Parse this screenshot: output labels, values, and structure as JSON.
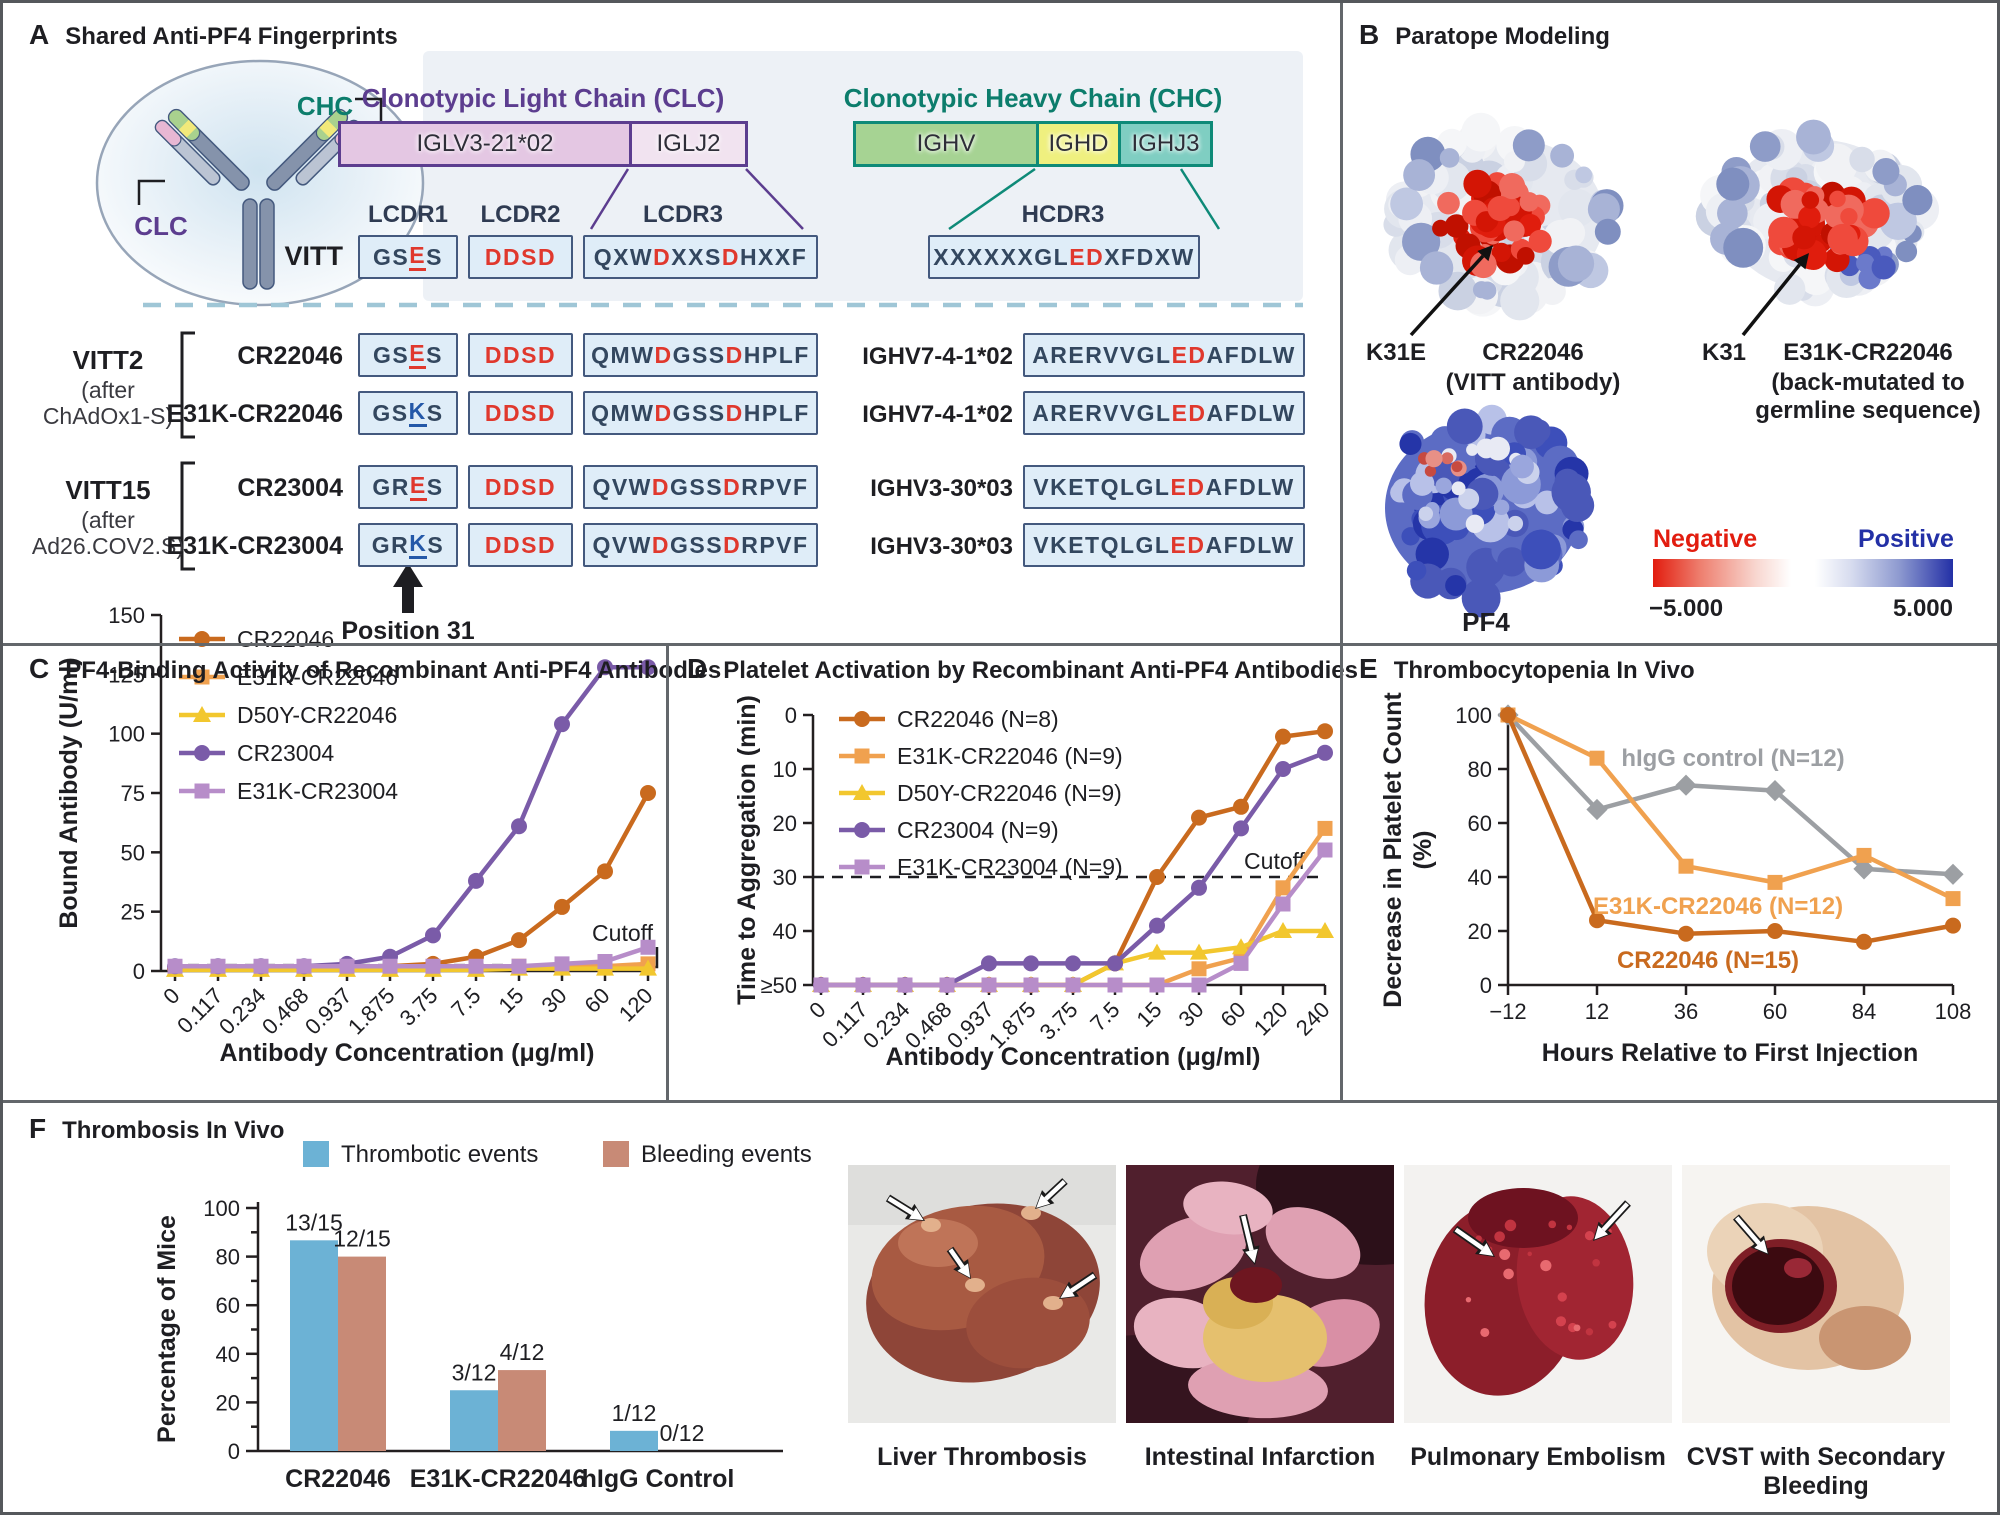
{
  "panelA": {
    "label": "A",
    "title": "Shared Anti-PF4 Fingerprints",
    "cartoon": {
      "chc_label": "CHC",
      "clc_label": "CLC"
    },
    "clc": {
      "header": "Clonotypic Light Chain (CLC)",
      "seg1": "IGLV3-21*02",
      "seg2": "IGLJ2"
    },
    "chc": {
      "header": "Clonotypic Heavy Chain (CHC)",
      "seg1": "IGHV",
      "seg2": "IGHD",
      "seg3": "IGHJ3"
    },
    "cols": {
      "lcdr1": "LCDR1",
      "lcdr2": "LCDR2",
      "lcdr3": "LCDR3",
      "hcdr3": "HCDR3"
    },
    "vitt_row": {
      "name": "VITT",
      "lcdr1": [
        [
          "GS",
          "d"
        ],
        [
          "E",
          "ru"
        ],
        [
          "S",
          "d"
        ]
      ],
      "lcdr2": [
        [
          "DDSD",
          "r"
        ]
      ],
      "lcdr3": [
        [
          "QXW",
          "d"
        ],
        [
          "D",
          "r"
        ],
        [
          "XXS",
          "d"
        ],
        [
          "D",
          "r"
        ],
        [
          "HXXF",
          "d"
        ]
      ],
      "hcdr3": [
        [
          "XXXXXXGL",
          "d"
        ],
        [
          "ED",
          "r"
        ],
        [
          "XFDXW",
          "d"
        ]
      ]
    },
    "groups": [
      {
        "name": "VITT2",
        "note1": "(after",
        "note2": "ChAdOx1-S)"
      },
      {
        "name": "VITT15",
        "note1": "(after",
        "note2": "Ad26.COV2.S)"
      }
    ],
    "rows": [
      {
        "name": "CR22046",
        "lcdr1": [
          [
            "GS",
            "d"
          ],
          [
            "E",
            "ru"
          ],
          [
            "S",
            "d"
          ]
        ],
        "lcdr2": [
          [
            "DDSD",
            "r"
          ]
        ],
        "lcdr3": [
          [
            "QMW",
            "d"
          ],
          [
            "D",
            "r"
          ],
          [
            "GSS",
            "d"
          ],
          [
            "D",
            "r"
          ],
          [
            "HPLF",
            "d"
          ]
        ],
        "gene": "IGHV7-4-1*02",
        "hcdr3": [
          [
            "ARERVVGL",
            "d"
          ],
          [
            "ED",
            "r"
          ],
          [
            "AFDLW",
            "d"
          ]
        ]
      },
      {
        "name": "E31K-CR22046",
        "lcdr1": [
          [
            "GS",
            "d"
          ],
          [
            "K",
            "bu"
          ],
          [
            "S",
            "d"
          ]
        ],
        "lcdr2": [
          [
            "DDSD",
            "r"
          ]
        ],
        "lcdr3": [
          [
            "QMW",
            "d"
          ],
          [
            "D",
            "r"
          ],
          [
            "GSS",
            "d"
          ],
          [
            "D",
            "r"
          ],
          [
            "HPLF",
            "d"
          ]
        ],
        "gene": "IGHV7-4-1*02",
        "hcdr3": [
          [
            "ARERVVGL",
            "d"
          ],
          [
            "ED",
            "r"
          ],
          [
            "AFDLW",
            "d"
          ]
        ]
      },
      {
        "name": "CR23004",
        "lcdr1": [
          [
            "GR",
            "d"
          ],
          [
            "E",
            "ru"
          ],
          [
            "S",
            "d"
          ]
        ],
        "lcdr2": [
          [
            "DDSD",
            "r"
          ]
        ],
        "lcdr3": [
          [
            "QVW",
            "d"
          ],
          [
            "D",
            "r"
          ],
          [
            "GSS",
            "d"
          ],
          [
            "D",
            "r"
          ],
          [
            "RPVF",
            "d"
          ]
        ],
        "gene": "IGHV3-30*03",
        "hcdr3": [
          [
            "VKETQLGL",
            "d"
          ],
          [
            "ED",
            "r"
          ],
          [
            "AFDLW",
            "d"
          ]
        ]
      },
      {
        "name": "E31K-CR23004",
        "lcdr1": [
          [
            "GR",
            "d"
          ],
          [
            "K",
            "bu"
          ],
          [
            "S",
            "d"
          ]
        ],
        "lcdr2": [
          [
            "DDSD",
            "r"
          ]
        ],
        "lcdr3": [
          [
            "QVW",
            "d"
          ],
          [
            "D",
            "r"
          ],
          [
            "GSS",
            "d"
          ],
          [
            "D",
            "r"
          ],
          [
            "RPVF",
            "d"
          ]
        ],
        "gene": "IGHV3-30*03",
        "hcdr3": [
          [
            "VKETQLGL",
            "d"
          ],
          [
            "ED",
            "r"
          ],
          [
            "AFDLW",
            "d"
          ]
        ]
      }
    ],
    "position_label": "Position 31"
  },
  "panelB": {
    "label": "B",
    "title": "Paratope Modeling",
    "k31e": "K31E",
    "blob1_name": "CR22046",
    "blob1_sub": "(VITT antibody)",
    "k31": "K31",
    "blob2_name": "E31K-CR22046",
    "blob2_sub1": "(back-mutated to",
    "blob2_sub2": "germline sequence)",
    "pf4": "PF4",
    "scale": {
      "negative": "Negative",
      "positive": "Positive",
      "min": "−5.000",
      "max": "5.000"
    }
  },
  "chart_data": [
    {
      "id": "chartC",
      "type": "line",
      "panel_label": "C",
      "title": "PF4-Binding Activity of Recombinant Anti-PF4 Antibodies",
      "xlabel": "Antibody Concentration (μg/ml)",
      "ylabel": "Bound Antibody (U/ml)",
      "ylim": [
        0,
        150
      ],
      "yticks": [
        0,
        25,
        50,
        75,
        100,
        125,
        150
      ],
      "categories": [
        "0",
        "0.117",
        "0.234",
        "0.468",
        "0.937",
        "1.875",
        "3.75",
        "7.5",
        "15",
        "30",
        "60",
        "120"
      ],
      "cutoff": {
        "value": 2.5,
        "label": "Cutoff"
      },
      "legend_position": "top-left",
      "grid": false,
      "series": [
        {
          "name": "CR22046",
          "color": "#C96A1E",
          "marker": "circle",
          "values": [
            1,
            1,
            1,
            1,
            1,
            2,
            3,
            6,
            13,
            27,
            42,
            75
          ]
        },
        {
          "name": "E31K-CR22046",
          "color": "#F0A14F",
          "marker": "square",
          "values": [
            1,
            1,
            1,
            1,
            1,
            1,
            1,
            1,
            2,
            2,
            2,
            3
          ]
        },
        {
          "name": "D50Y-CR22046",
          "color": "#F2C72E",
          "marker": "triangle",
          "values": [
            0.5,
            0.5,
            0.5,
            0.5,
            0.5,
            0.5,
            0.5,
            0.5,
            1,
            1,
            1,
            1
          ]
        },
        {
          "name": "CR23004",
          "color": "#7A5BA8",
          "marker": "circle",
          "values": [
            2,
            2,
            2,
            2,
            3,
            6,
            15,
            38,
            61,
            104,
            128,
            128
          ]
        },
        {
          "name": "E31K-CR23004",
          "color": "#B78DC9",
          "marker": "square",
          "values": [
            2,
            2,
            2,
            2,
            2,
            2,
            2,
            2,
            2,
            3,
            4,
            10
          ]
        }
      ]
    },
    {
      "id": "chartD",
      "type": "line",
      "panel_label": "D",
      "title": "Platelet Activation by Recombinant Anti-PF4 Antibodies",
      "xlabel": "Antibody Concentration (μg/ml)",
      "ylabel": "Time to Aggregation (min)",
      "ylim": [
        0,
        50
      ],
      "inverted": true,
      "yticks": [
        0,
        10,
        20,
        30,
        40,
        50
      ],
      "ytick_labels": [
        "0",
        "10",
        "20",
        "30",
        "40",
        "≥50"
      ],
      "categories": [
        "0",
        "0.117",
        "0.234",
        "0.468",
        "0.937",
        "1.875",
        "3.75",
        "7.5",
        "15",
        "30",
        "60",
        "120",
        "240"
      ],
      "cutoff": {
        "value": 30,
        "label": "Cutoff"
      },
      "legend_position": "top-left",
      "grid": false,
      "series": [
        {
          "name": "CR22046 (N=8)",
          "color": "#C96A1E",
          "marker": "circle",
          "values": [
            50,
            50,
            50,
            50,
            50,
            50,
            50,
            46,
            30,
            19,
            17,
            4,
            3
          ]
        },
        {
          "name": "E31K-CR22046 (N=9)",
          "color": "#F0A14F",
          "marker": "square",
          "values": [
            50,
            50,
            50,
            50,
            50,
            50,
            50,
            50,
            50,
            47,
            45,
            32,
            21
          ]
        },
        {
          "name": "D50Y-CR22046 (N=9)",
          "color": "#F2C72E",
          "marker": "triangle",
          "values": [
            50,
            50,
            50,
            50,
            50,
            50,
            50,
            46,
            44,
            44,
            43,
            40,
            40
          ]
        },
        {
          "name": "CR23004 (N=9)",
          "color": "#7A5BA8",
          "marker": "circle",
          "values": [
            50,
            50,
            50,
            50,
            46,
            46,
            46,
            46,
            39,
            32,
            21,
            10,
            7
          ]
        },
        {
          "name": "E31K-CR23004 (N=9)",
          "color": "#B78DC9",
          "marker": "square",
          "values": [
            50,
            50,
            50,
            50,
            50,
            50,
            50,
            50,
            50,
            50,
            46,
            35,
            25
          ]
        }
      ]
    },
    {
      "id": "chartE",
      "type": "line",
      "panel_label": "E",
      "title": "Thrombocytopenia In Vivo",
      "xlabel": "Hours Relative to First Injection",
      "ylabel": "Decrease in Platelet Count\n(%)",
      "ylim": [
        0,
        100
      ],
      "yticks": [
        0,
        20,
        40,
        60,
        80,
        100
      ],
      "x": [
        -12,
        12,
        36,
        60,
        84,
        108
      ],
      "x_labels": [
        "−12",
        "12",
        "36",
        "60",
        "84",
        "108"
      ],
      "grid": false,
      "inline_labels": true,
      "series": [
        {
          "name": "hIgG control (N=12)",
          "color": "#9C9FA3",
          "marker": "diamond",
          "values": [
            100,
            65,
            74,
            72,
            43,
            41
          ]
        },
        {
          "name": "E31K-CR22046 (N=12)",
          "color": "#F0A14F",
          "marker": "square",
          "values": [
            100,
            84,
            44,
            38,
            48,
            32
          ]
        },
        {
          "name": "CR22046 (N=15)",
          "color": "#C96A1E",
          "marker": "circle",
          "values": [
            100,
            24,
            19,
            20,
            16,
            22
          ]
        }
      ]
    },
    {
      "id": "chartF",
      "type": "bar",
      "panel_label": "F",
      "title": "Thrombosis In Vivo",
      "ylabel": "Percentage of Mice",
      "ylim": [
        0,
        100
      ],
      "yticks": [
        0,
        20,
        40,
        60,
        80,
        100
      ],
      "categories": [
        "CR22046",
        "E31K-CR22046",
        "hIgG Control"
      ],
      "legend": [
        "Thrombotic events",
        "Bleeding events"
      ],
      "series": [
        {
          "name": "Thrombotic events",
          "color": "#6CB2D5",
          "values": [
            86.7,
            25,
            8.3
          ],
          "labels": [
            "13/15",
            "3/12",
            "1/12"
          ]
        },
        {
          "name": "Bleeding events",
          "color": "#C88A76",
          "values": [
            80,
            33.3,
            0
          ],
          "labels": [
            "12/15",
            "4/12",
            "0/12"
          ]
        }
      ]
    }
  ],
  "photos": {
    "captions": [
      "Liver Thrombosis",
      "Intestinal Infarction",
      "Pulmonary Embolism",
      "CVST with Secondary\nBleeding"
    ]
  },
  "colors": {
    "sequence_red": "#E0382D",
    "sequence_blue": "#2458A8",
    "clc_purple": "#5C3D8F",
    "chc_teal": "#0E8A78",
    "thrombotic_blue": "#6CB2D5",
    "bleeding_salmon": "#C88A76"
  }
}
